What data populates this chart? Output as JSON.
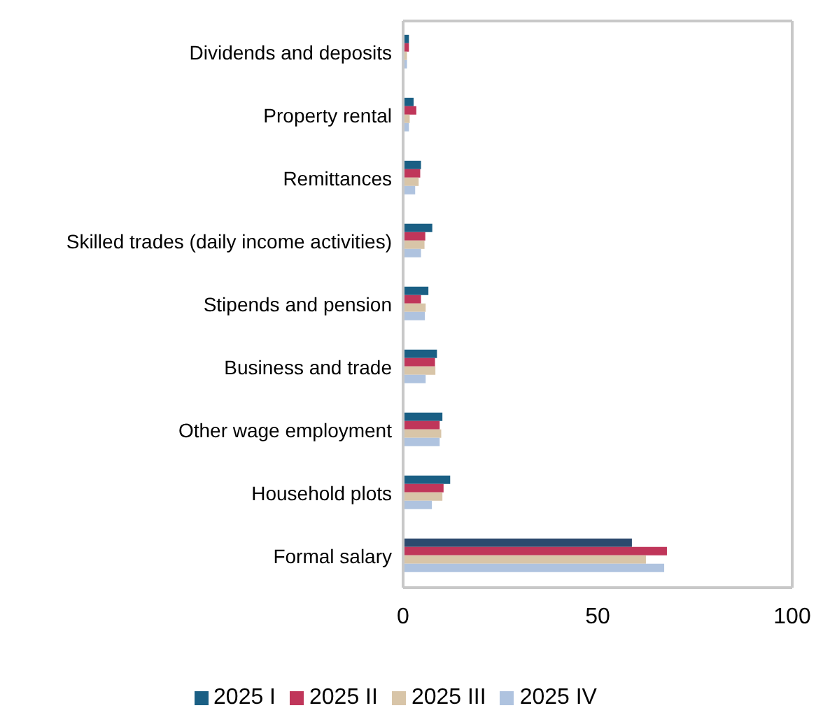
{
  "chart_data": {
    "type": "bar",
    "orientation": "horizontal",
    "categories": [
      "Dividends and deposits",
      "Property rental",
      "Remittances",
      "Skilled trades (daily income activities)",
      "Stipends and pension",
      "Business and trade",
      "Other wage employment",
      "Household plots",
      "Formal salary"
    ],
    "series": [
      {
        "name": "2025 I",
        "color": "#1a5f84",
        "colors": [
          "#1a5f84",
          "#1a5f84",
          "#1a5f84",
          "#1a5f84",
          "#1a5f84",
          "#1a5f84",
          "#1a5f84",
          "#1a5f84",
          "#2d4a6e"
        ],
        "values": [
          1.5,
          2.7,
          4.6,
          7.5,
          6.5,
          8.7,
          10.1,
          12.1,
          58.8
        ]
      },
      {
        "name": "2025 II",
        "color": "#c0365a",
        "values": [
          1.5,
          3.4,
          4.4,
          5.7,
          4.6,
          8.2,
          9.4,
          10.4,
          67.8
        ]
      },
      {
        "name": "2025 III",
        "color": "#d8c5a8",
        "values": [
          1.0,
          1.7,
          4.0,
          5.5,
          5.8,
          8.3,
          9.8,
          10.1,
          62.4
        ]
      },
      {
        "name": "2025 IV",
        "color": "#afc3df",
        "values": [
          1.0,
          1.5,
          3.1,
          4.6,
          5.6,
          5.8,
          9.4,
          7.4,
          67.1
        ]
      }
    ],
    "xlim": [
      0,
      100
    ],
    "xticks": [
      0,
      50,
      100
    ],
    "legend": "bottom"
  }
}
